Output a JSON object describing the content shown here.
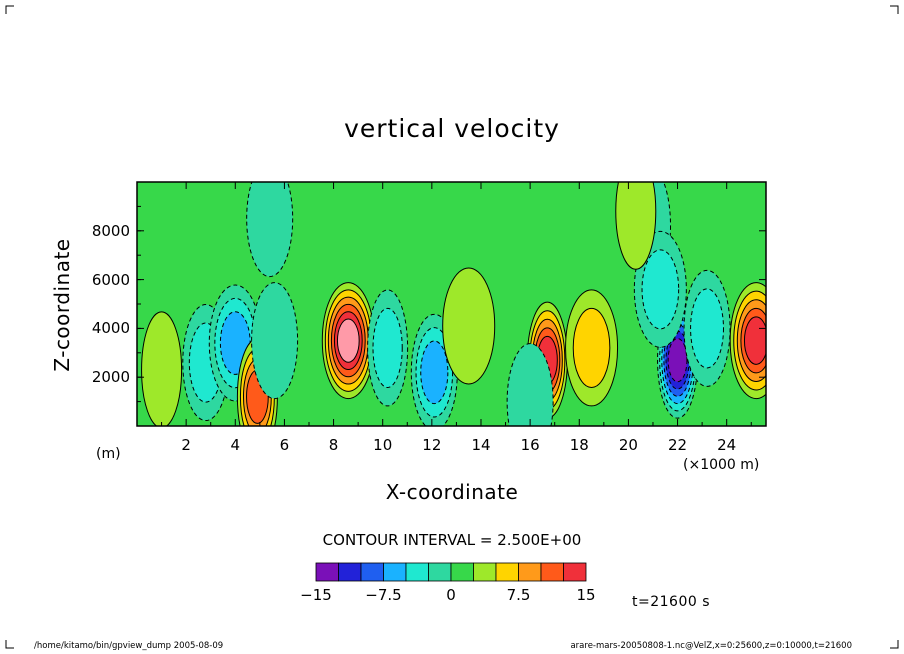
{
  "chart_data": {
    "type": "heatmap",
    "title": "vertical velocity",
    "xlabel": "X-coordinate",
    "ylabel": "Z-coordinate",
    "x_unit": "(×1000 m)",
    "y_unit": "(m)",
    "x_ticks": [
      "2",
      "4",
      "6",
      "8",
      "10",
      "12",
      "14",
      "16",
      "18",
      "20",
      "22",
      "24"
    ],
    "y_ticks": [
      "2000",
      "4000",
      "6000",
      "8000"
    ],
    "xlim": [
      0,
      25.6
    ],
    "ylim": [
      0,
      10000
    ],
    "contour_interval_label": "CONTOUR INTERVAL = 2.500E+00",
    "colorbar": {
      "levels": [
        -15,
        -12.5,
        -10,
        -7.5,
        -5,
        -2.5,
        0,
        2.5,
        5,
        7.5,
        10,
        12.5,
        15
      ],
      "colors": [
        "#7a10b8",
        "#2222d8",
        "#1f5ff0",
        "#1ab2ff",
        "#1fe8d0",
        "#2ed8a0",
        "#37d84a",
        "#9ee82a",
        "#ffd400",
        "#ff9a1a",
        "#ff5a1a",
        "#f0303a",
        "#ff9aa8"
      ],
      "labels": [
        "−15",
        "−7.5",
        "0",
        "7.5",
        "15"
      ],
      "label_values": [
        -15,
        -7.5,
        0,
        7.5,
        15
      ]
    },
    "background_color": "#37d84a",
    "features": [
      {
        "x": 1.0,
        "z": 2300,
        "w": 2.5
      },
      {
        "x": 2.8,
        "z": 2600,
        "w": -5
      },
      {
        "x": 4.0,
        "z": 3400,
        "w": -7.5
      },
      {
        "x": 4.9,
        "z": 1200,
        "w": 10
      },
      {
        "x": 5.6,
        "z": 3500,
        "w": -2.5
      },
      {
        "x": 8.6,
        "z": 3500,
        "w": 15
      },
      {
        "x": 10.2,
        "z": 3200,
        "w": -5
      },
      {
        "x": 12.1,
        "z": 2200,
        "w": -7.5
      },
      {
        "x": 13.5,
        "z": 4100,
        "w": 2.5
      },
      {
        "x": 16.7,
        "z": 2700,
        "w": 12.5
      },
      {
        "x": 16.0,
        "z": 1000,
        "w": -2.5
      },
      {
        "x": 18.5,
        "z": 3200,
        "w": 5
      },
      {
        "x": 22.0,
        "z": 2700,
        "w": -15
      },
      {
        "x": 23.2,
        "z": 4000,
        "w": -5
      },
      {
        "x": 25.2,
        "z": 3500,
        "w": 12.5
      },
      {
        "x": 20.9,
        "z": 8200,
        "w": -2.5
      },
      {
        "x": 5.4,
        "z": 8500,
        "w": -2.5
      },
      {
        "x": 21.3,
        "z": 5600,
        "w": -5
      },
      {
        "x": 20.3,
        "z": 8800,
        "w": 2.5
      }
    ]
  },
  "time_label": "t=21600 s",
  "footer": {
    "left": "/home/kitamo/bin/gpview_dump   2005-08-09",
    "right": "arare-mars-20050808-1.nc@VelZ,x=0:25600,z=0:10000,t=21600"
  }
}
